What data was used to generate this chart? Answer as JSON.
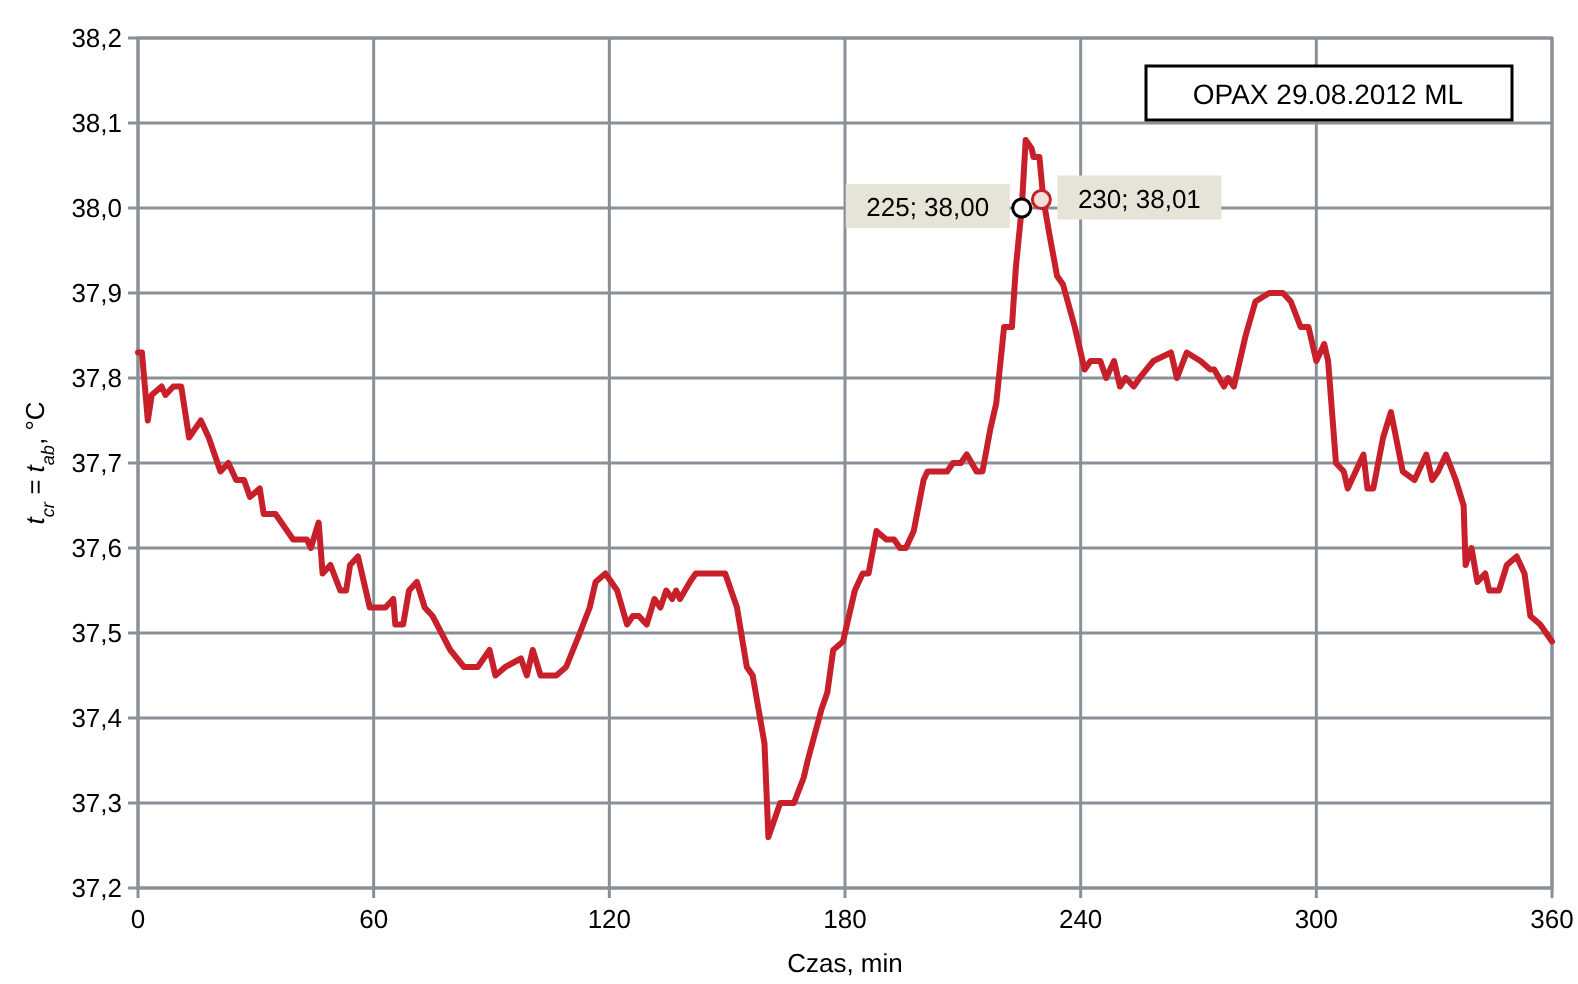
{
  "chart_data": {
    "type": "line",
    "xlabel": "Czas, min",
    "ylabel": "t$_{cr}$ = t$_{ab}$, °C",
    "xlim": [
      0,
      360
    ],
    "xticks": [
      0,
      60,
      120,
      180,
      240,
      300,
      360
    ],
    "ylim": [
      37.2,
      38.2
    ],
    "yticks": [
      {
        "value": 37.2,
        "label": "37,2"
      },
      {
        "value": 37.3,
        "label": "37,3"
      },
      {
        "value": 37.4,
        "label": "37,4"
      },
      {
        "value": 37.5,
        "label": "37,5"
      },
      {
        "value": 37.6,
        "label": "37,6"
      },
      {
        "value": 37.7,
        "label": "37,7"
      },
      {
        "value": 37.8,
        "label": "37,8"
      },
      {
        "value": 37.9,
        "label": "37,9"
      },
      {
        "value": 38.0,
        "label": "38,0"
      },
      {
        "value": 38.1,
        "label": "38,1"
      },
      {
        "value": 38.2,
        "label": "38,2"
      }
    ],
    "grid": true,
    "marker": "none",
    "line_style": "solid",
    "annotations": [
      "OPAX 29.08.2012 ML",
      {
        "text": "225; 38,00",
        "x": 225,
        "y": 38.0
      },
      {
        "text": "230; 38,01",
        "x": 230,
        "y": 38.01
      }
    ],
    "series": [
      {
        "color": "#c8202a",
        "x": [
          0,
          1,
          2.5,
          3.5,
          6,
          7,
          9,
          11,
          13,
          16,
          18,
          21,
          23,
          25,
          27,
          28.5,
          31,
          32,
          35,
          39.5,
          43,
          44,
          46,
          47,
          49,
          51.5,
          53,
          54,
          56,
          59,
          63,
          65,
          65.5,
          67.5,
          69,
          71,
          73,
          75,
          79.5,
          83,
          86.5,
          89.5,
          91,
          93.5,
          97.5,
          99,
          100.5,
          102.5,
          105,
          106.5,
          109,
          112.5,
          115,
          116.5,
          119,
          122,
          124.5,
          126,
          127.5,
          129.5,
          131.5,
          133,
          134.5,
          136,
          137,
          138,
          140.5,
          142,
          149.5,
          152.5,
          155,
          156.5,
          159.5,
          160.5,
          163.5,
          167,
          169.5,
          170.5,
          174,
          175.5,
          177,
          179.5,
          182.5,
          184.5,
          186,
          188,
          190.5,
          192.5,
          194,
          195.5,
          197.5,
          200,
          201,
          206,
          207.5,
          209.5,
          211,
          213.5,
          215,
          217,
          218.5,
          220.5,
          222.5,
          223.5,
          225,
          226,
          227.5,
          228,
          229.5,
          230.5,
          232,
          234,
          235.5,
          238.5,
          241,
          242.5,
          245,
          246.5,
          248.5,
          250,
          251.5,
          253.5,
          255,
          258.5,
          263,
          264.5,
          267,
          270.5,
          273,
          274,
          276.5,
          277.5,
          279,
          282,
          284.5,
          288,
          291.5,
          293.5,
          296,
          298,
          300,
          302,
          303,
          305,
          307,
          308,
          312,
          313,
          314.5,
          317,
          319,
          322,
          325,
          328,
          329.5,
          331,
          333,
          335.5,
          337.5,
          338,
          339.5,
          341,
          343,
          344,
          346.5,
          348.5,
          351,
          353,
          354.5,
          357,
          360
        ],
        "values": [
          37.83,
          37.83,
          37.75,
          37.78,
          37.79,
          37.78,
          37.79,
          37.79,
          37.73,
          37.75,
          37.73,
          37.69,
          37.7,
          37.68,
          37.68,
          37.66,
          37.67,
          37.64,
          37.64,
          37.61,
          37.61,
          37.6,
          37.63,
          37.57,
          37.58,
          37.55,
          37.55,
          37.58,
          37.59,
          37.53,
          37.53,
          37.54,
          37.51,
          37.51,
          37.55,
          37.56,
          37.53,
          37.52,
          37.48,
          37.46,
          37.46,
          37.48,
          37.45,
          37.46,
          37.47,
          37.45,
          37.48,
          37.45,
          37.45,
          37.45,
          37.46,
          37.5,
          37.53,
          37.56,
          37.57,
          37.55,
          37.51,
          37.52,
          37.52,
          37.51,
          37.54,
          37.53,
          37.55,
          37.54,
          37.55,
          37.54,
          37.56,
          37.57,
          37.57,
          37.53,
          37.46,
          37.45,
          37.37,
          37.26,
          37.3,
          37.3,
          37.33,
          37.35,
          37.41,
          37.43,
          37.48,
          37.49,
          37.55,
          37.57,
          37.57,
          37.62,
          37.61,
          37.61,
          37.6,
          37.6,
          37.62,
          37.68,
          37.69,
          37.69,
          37.7,
          37.7,
          37.71,
          37.69,
          37.69,
          37.74,
          37.77,
          37.86,
          37.86,
          37.93,
          38.0,
          38.08,
          38.07,
          38.06,
          38.06,
          38.01,
          37.97,
          37.92,
          37.91,
          37.86,
          37.81,
          37.82,
          37.82,
          37.8,
          37.82,
          37.79,
          37.8,
          37.79,
          37.8,
          37.82,
          37.83,
          37.8,
          37.83,
          37.82,
          37.81,
          37.81,
          37.79,
          37.8,
          37.79,
          37.85,
          37.89,
          37.9,
          37.9,
          37.89,
          37.86,
          37.86,
          37.82,
          37.84,
          37.82,
          37.7,
          37.69,
          37.67,
          37.71,
          37.67,
          37.67,
          37.73,
          37.76,
          37.69,
          37.68,
          37.71,
          37.68,
          37.69,
          37.71,
          37.68,
          37.65,
          37.58,
          37.6,
          37.56,
          37.57,
          37.55,
          37.55,
          37.58,
          37.59,
          37.57,
          37.52,
          37.51,
          37.49
        ]
      }
    ]
  }
}
